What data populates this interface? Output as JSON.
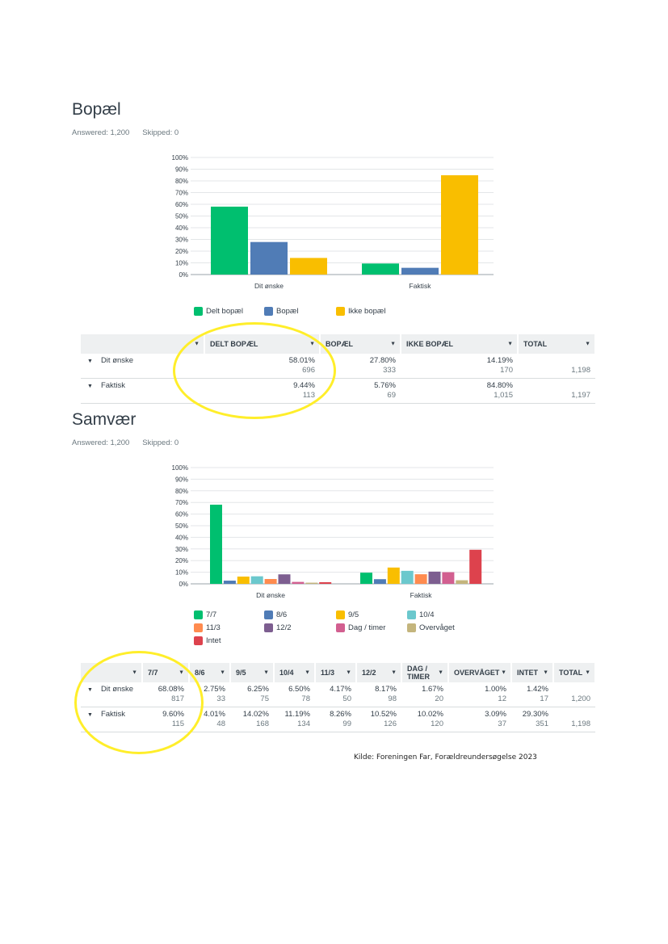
{
  "sections": [
    {
      "title": "Bopæl",
      "answered": "Answered: 1,200",
      "skipped": "Skipped: 0"
    },
    {
      "title": "Samvær",
      "answered": "Answered: 1,200",
      "skipped": "Skipped: 0"
    }
  ],
  "chart_data": [
    {
      "type": "bar",
      "categories": [
        "Dit ønske",
        "Faktisk"
      ],
      "ylim": [
        0,
        100
      ],
      "yticks": [
        "0%",
        "10%",
        "20%",
        "30%",
        "40%",
        "50%",
        "60%",
        "70%",
        "80%",
        "90%",
        "100%"
      ],
      "grid": true,
      "legend": "bottom",
      "series": [
        {
          "name": "Delt bopæl",
          "color": "#00bf6f",
          "values": [
            58.01,
            9.44
          ]
        },
        {
          "name": "Bopæl",
          "color": "#507cb6",
          "values": [
            27.8,
            5.76
          ]
        },
        {
          "name": "Ikke bopæl",
          "color": "#f9be00",
          "values": [
            14.19,
            84.8
          ]
        }
      ]
    },
    {
      "type": "bar",
      "categories": [
        "Dit ønske",
        "Faktisk"
      ],
      "ylim": [
        0,
        100
      ],
      "yticks": [
        "0%",
        "10%",
        "20%",
        "30%",
        "40%",
        "50%",
        "60%",
        "70%",
        "80%",
        "90%",
        "100%"
      ],
      "grid": true,
      "legend": "bottom",
      "series": [
        {
          "name": "7/7",
          "color": "#00bf6f",
          "values": [
            68.08,
            9.6
          ]
        },
        {
          "name": "8/6",
          "color": "#507cb6",
          "values": [
            2.75,
            4.01
          ]
        },
        {
          "name": "9/5",
          "color": "#f9be00",
          "values": [
            6.25,
            14.02
          ]
        },
        {
          "name": "10/4",
          "color": "#6bc8cd",
          "values": [
            6.5,
            11.19
          ]
        },
        {
          "name": "11/3",
          "color": "#ff8b4f",
          "values": [
            4.17,
            8.26
          ]
        },
        {
          "name": "12/2",
          "color": "#7d5e90",
          "values": [
            8.17,
            10.52
          ]
        },
        {
          "name": "Dag / timer",
          "color": "#d25f90",
          "values": [
            1.67,
            10.02
          ]
        },
        {
          "name": "Overvåget",
          "color": "#c4b57d",
          "values": [
            1.0,
            3.09
          ]
        },
        {
          "name": "Intet",
          "color": "#dd424d",
          "values": [
            1.42,
            29.3
          ]
        }
      ]
    }
  ],
  "table1": {
    "headers": [
      "DELT BOPÆL",
      "BOPÆL",
      "IKKE BOPÆL",
      "TOTAL"
    ],
    "rows": [
      {
        "label": "Dit ønske",
        "cells": [
          [
            "58.01%",
            "696"
          ],
          [
            "27.80%",
            "333"
          ],
          [
            "14.19%",
            "170"
          ]
        ],
        "total": "1,198"
      },
      {
        "label": "Faktisk",
        "cells": [
          [
            "9.44%",
            "113"
          ],
          [
            "5.76%",
            "69"
          ],
          [
            "84.80%",
            "1,015"
          ]
        ],
        "total": "1,197"
      }
    ]
  },
  "table2": {
    "headers": [
      "7/7",
      "8/6",
      "9/5",
      "10/4",
      "11/3",
      "12/2",
      "DAG / TIMER",
      "OVERVÅGET",
      "INTET",
      "TOTAL"
    ],
    "rows": [
      {
        "label": "Dit ønske",
        "cells": [
          [
            "68.08%",
            "817"
          ],
          [
            "2.75%",
            "33"
          ],
          [
            "6.25%",
            "75"
          ],
          [
            "6.50%",
            "78"
          ],
          [
            "4.17%",
            "50"
          ],
          [
            "8.17%",
            "98"
          ],
          [
            "1.67%",
            "20"
          ],
          [
            "1.00%",
            "12"
          ],
          [
            "1.42%",
            "17"
          ]
        ],
        "total": "1,200"
      },
      {
        "label": "Faktisk",
        "cells": [
          [
            "9.60%",
            "115"
          ],
          [
            "4.01%",
            "48"
          ],
          [
            "14.02%",
            "168"
          ],
          [
            "11.19%",
            "134"
          ],
          [
            "8.26%",
            "99"
          ],
          [
            "10.52%",
            "126"
          ],
          [
            "10.02%",
            "120"
          ],
          [
            "3.09%",
            "37"
          ],
          [
            "29.30%",
            "351"
          ]
        ],
        "total": "1,198"
      }
    ]
  },
  "caret": "▼",
  "source": "Kilde: Foreningen Far, Forældreundersøgelse 2023"
}
